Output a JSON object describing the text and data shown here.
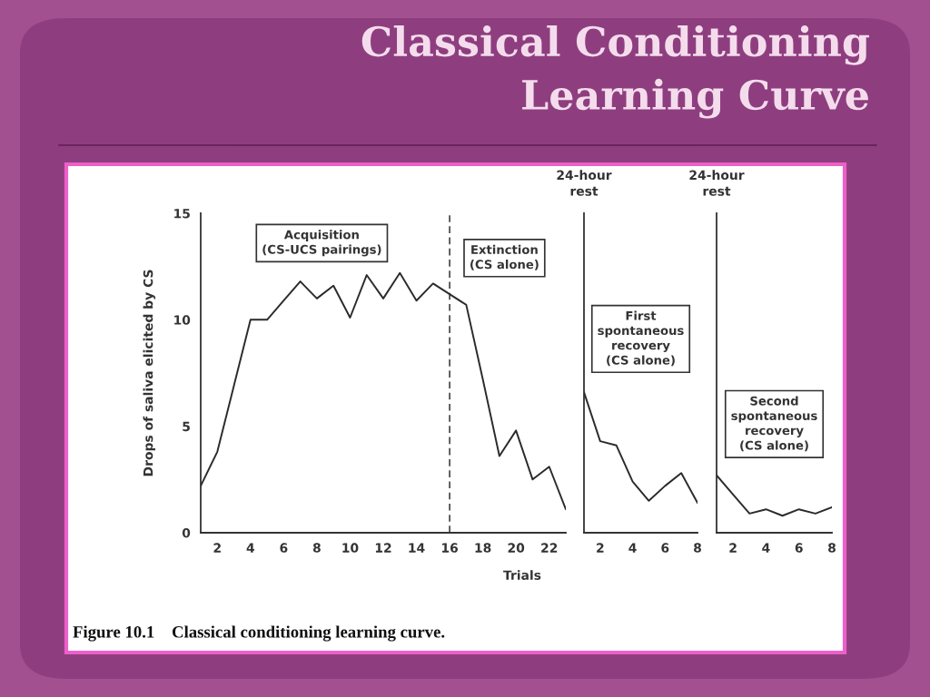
{
  "chart_data": [
    {
      "type": "line",
      "title": "Classical Conditioning\nLearning Curve",
      "xlabel": "Trials",
      "ylabel": "Drops of saliva elicited by CS",
      "x": [
        1,
        2,
        3,
        4,
        5,
        6,
        7,
        8,
        9,
        10,
        11,
        12,
        13,
        14,
        15,
        16,
        17,
        18,
        19,
        20,
        21,
        22,
        23
      ],
      "series": [
        {
          "color": "#2b2b2b",
          "values": [
            2.2,
            3.8,
            6.9,
            10,
            10,
            10.9,
            11.8,
            11,
            11.6,
            10.1,
            12.1,
            11,
            12.2,
            10.9,
            11.7,
            11.2,
            10.7,
            7.2,
            3.6,
            4.8,
            2.5,
            3.1,
            1.1
          ]
        }
      ],
      "xlim": [
        1,
        23
      ],
      "xticks": [
        2,
        4,
        6,
        8,
        10,
        12,
        14,
        16,
        18,
        20,
        22
      ],
      "ylim": [
        0,
        15
      ],
      "yticks": [
        0,
        5,
        10,
        15
      ],
      "ref_lines": [
        {
          "axis": "x",
          "value": 16,
          "color": "#333333",
          "line_style": "dashed"
        }
      ],
      "annotations": [
        "Acquisition\n(CS-UCS pairings)",
        "Extinction\n(CS alone)",
        "Figure 10.1    Classical conditioning learning curve."
      ]
    },
    {
      "type": "line",
      "title": "24-hour\nrest",
      "x": [
        1,
        2,
        3,
        4,
        5,
        6,
        7,
        8
      ],
      "series": [
        {
          "color": "#2b2b2b",
          "values": [
            6.6,
            4.3,
            4.1,
            2.4,
            1.5,
            2.2,
            2.8,
            1.4
          ]
        }
      ],
      "xlim": [
        1,
        8
      ],
      "xticks": [
        2,
        4,
        6,
        8
      ],
      "ylim": [
        0,
        15
      ],
      "tick_labels": "x",
      "annotations": [
        "First\nspontaneous\nrecovery\n(CS alone)"
      ]
    },
    {
      "type": "line",
      "title": "24-hour\nrest",
      "x": [
        1,
        2,
        3,
        4,
        5,
        6,
        7,
        8
      ],
      "series": [
        {
          "color": "#2b2b2b",
          "values": [
            2.7,
            1.8,
            0.9,
            1.1,
            0.8,
            1.1,
            0.9,
            1.2
          ]
        }
      ],
      "xlim": [
        1,
        8
      ],
      "xticks": [
        2,
        4,
        6,
        8
      ],
      "ylim": [
        0,
        15
      ],
      "tick_labels": "x",
      "annotations": [
        "Second\nspontaneous\nrecovery\n(CS alone)"
      ]
    }
  ]
}
